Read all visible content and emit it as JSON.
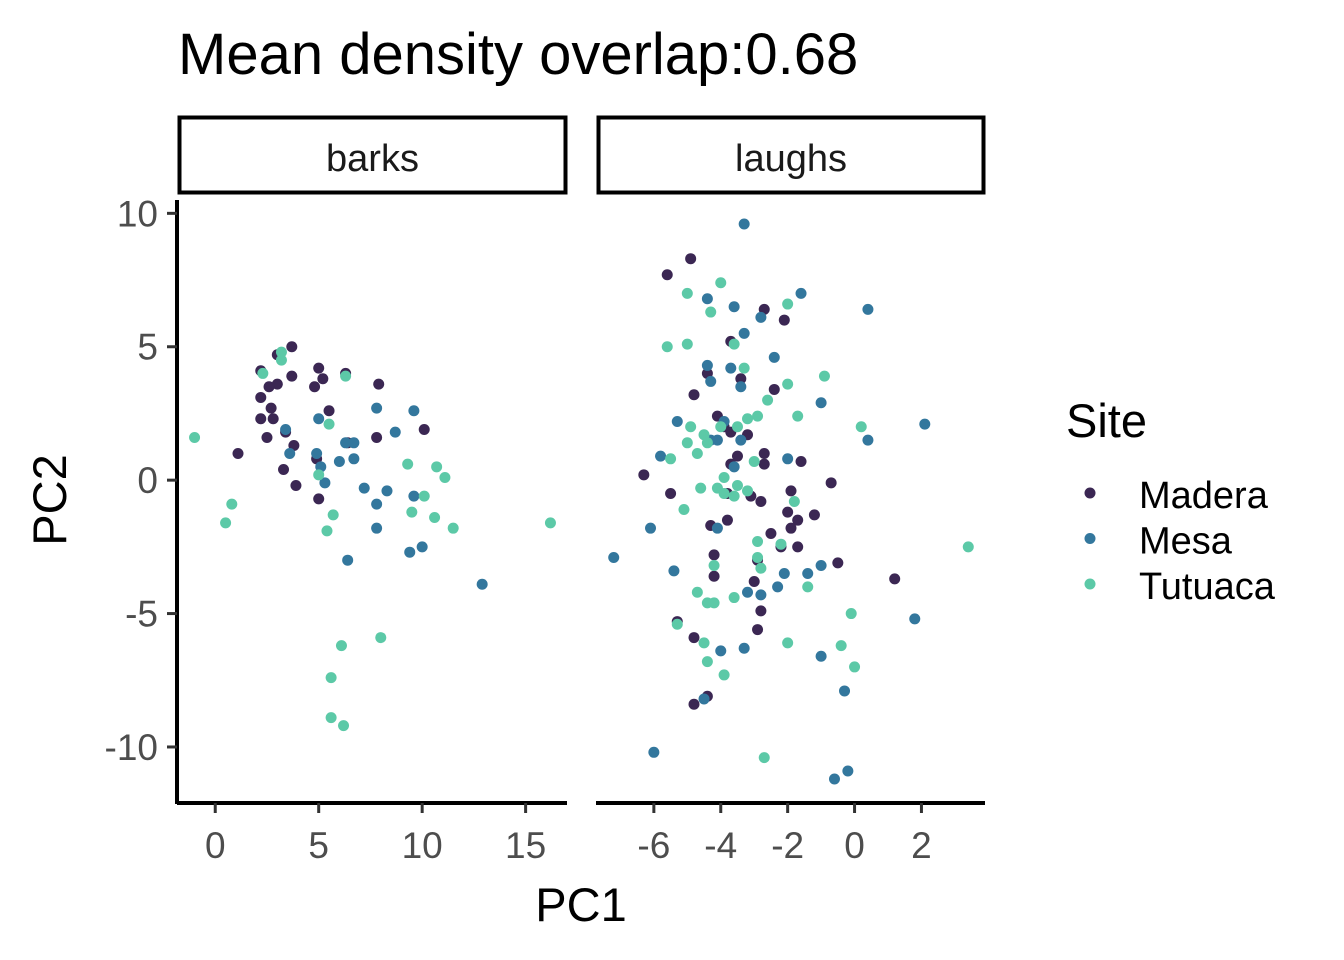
{
  "chart_data": {
    "type": "scatter",
    "title": "Mean density overlap:0.68",
    "xlabel": "PC1",
    "ylabel": "PC2",
    "ylim": [
      -12.1,
      10.5
    ],
    "yticks": [
      10,
      5,
      0,
      -5,
      -10
    ],
    "y_tick_labels": [
      "10",
      "5",
      "0",
      "-5",
      "-10"
    ],
    "legend": {
      "title": "Site",
      "position": "right"
    },
    "series_colors": {
      "Madera": "#3b2753",
      "Mesa": "#33779d",
      "Tutuaca": "#5cc9a7"
    },
    "panels": [
      {
        "label": "barks",
        "xlim": [
          -1.8,
          17
        ],
        "xticks": [
          0,
          5,
          10,
          15
        ],
        "x_tick_labels": [
          "0",
          "5",
          "10",
          "15"
        ],
        "series": [
          {
            "name": "Madera",
            "points": [
              [
                3.7,
                5.0
              ],
              [
                3.0,
                4.7
              ],
              [
                2.2,
                4.1
              ],
              [
                3.0,
                3.6
              ],
              [
                2.6,
                3.5
              ],
              [
                3.7,
                3.9
              ],
              [
                2.2,
                3.1
              ],
              [
                2.7,
                2.7
              ],
              [
                2.8,
                2.3
              ],
              [
                2.2,
                2.3
              ],
              [
                2.5,
                1.6
              ],
              [
                3.4,
                1.8
              ],
              [
                3.8,
                1.3
              ],
              [
                3.3,
                0.4
              ],
              [
                3.9,
                -0.2
              ],
              [
                5.0,
                -0.7
              ],
              [
                1.1,
                1.0
              ],
              [
                5.0,
                4.2
              ],
              [
                5.2,
                3.8
              ],
              [
                4.8,
                3.5
              ],
              [
                5.5,
                2.6
              ],
              [
                6.3,
                4.0
              ],
              [
                6.4,
                1.4
              ],
              [
                7.9,
                3.6
              ],
              [
                7.8,
                1.6
              ],
              [
                10.1,
                1.9
              ],
              [
                4.9,
                0.8
              ]
            ]
          },
          {
            "name": "Mesa",
            "points": [
              [
                3.4,
                1.9
              ],
              [
                3.6,
                1.0
              ],
              [
                4.9,
                1.0
              ],
              [
                5.0,
                2.3
              ],
              [
                5.1,
                0.5
              ],
              [
                5.3,
                -0.1
              ],
              [
                6.0,
                0.7
              ],
              [
                6.3,
                1.4
              ],
              [
                6.7,
                1.4
              ],
              [
                6.7,
                0.8
              ],
              [
                7.2,
                -0.3
              ],
              [
                7.8,
                2.7
              ],
              [
                7.8,
                -0.9
              ],
              [
                7.8,
                -1.8
              ],
              [
                8.3,
                -0.4
              ],
              [
                8.7,
                1.8
              ],
              [
                9.6,
                2.6
              ],
              [
                9.6,
                -0.6
              ],
              [
                9.4,
                -2.7
              ],
              [
                10.0,
                -2.5
              ],
              [
                6.4,
                -3.0
              ],
              [
                12.9,
                -3.9
              ]
            ]
          },
          {
            "name": "Tutuaca",
            "points": [
              [
                -1.0,
                1.6
              ],
              [
                0.8,
                -0.9
              ],
              [
                0.5,
                -1.6
              ],
              [
                2.3,
                4.0
              ],
              [
                3.2,
                4.8
              ],
              [
                3.2,
                4.5
              ],
              [
                5.0,
                0.2
              ],
              [
                5.5,
                2.1
              ],
              [
                5.7,
                -1.3
              ],
              [
                5.4,
                -1.9
              ],
              [
                6.3,
                3.9
              ],
              [
                9.3,
                0.6
              ],
              [
                9.5,
                -1.2
              ],
              [
                10.1,
                -0.6
              ],
              [
                10.7,
                0.5
              ],
              [
                11.1,
                0.1
              ],
              [
                10.6,
                -1.4
              ],
              [
                11.5,
                -1.8
              ],
              [
                16.2,
                -1.6
              ],
              [
                6.1,
                -6.2
              ],
              [
                8.0,
                -5.9
              ],
              [
                5.6,
                -7.4
              ],
              [
                5.6,
                -8.9
              ],
              [
                6.2,
                -9.2
              ]
            ]
          }
        ]
      },
      {
        "label": "laughs",
        "xlim": [
          -7.7,
          3.9
        ],
        "xticks": [
          -6,
          -4,
          -2,
          0,
          2
        ],
        "x_tick_labels": [
          "-6",
          "-4",
          "-2",
          "0",
          "2"
        ],
        "series": [
          {
            "name": "Madera",
            "points": [
              [
                -5.6,
                7.7
              ],
              [
                -4.9,
                8.3
              ],
              [
                -3.7,
                5.2
              ],
              [
                -2.7,
                6.4
              ],
              [
                -2.1,
                6.0
              ],
              [
                -4.4,
                4.0
              ],
              [
                -3.4,
                3.8
              ],
              [
                -4.8,
                3.2
              ],
              [
                -4.1,
                2.4
              ],
              [
                -3.9,
                2.0
              ],
              [
                -3.7,
                1.8
              ],
              [
                -3.2,
                1.7
              ],
              [
                -2.7,
                1.0
              ],
              [
                -2.4,
                3.4
              ],
              [
                -3.5,
                0.9
              ],
              [
                -3.7,
                0.6
              ],
              [
                -2.7,
                0.6
              ],
              [
                -1.6,
                0.7
              ],
              [
                -0.7,
                -0.1
              ],
              [
                -6.3,
                0.2
              ],
              [
                -5.5,
                -0.5
              ],
              [
                -3.8,
                -0.5
              ],
              [
                -3.1,
                -0.6
              ],
              [
                -2.8,
                -0.8
              ],
              [
                -1.9,
                -0.4
              ],
              [
                -2.0,
                -1.2
              ],
              [
                -1.9,
                -1.8
              ],
              [
                -1.7,
                -1.5
              ],
              [
                -1.2,
                -1.3
              ],
              [
                -2.5,
                -2.0
              ],
              [
                -2.2,
                -2.5
              ],
              [
                -1.7,
                -2.5
              ],
              [
                -0.5,
                -3.1
              ],
              [
                -2.9,
                -3.0
              ],
              [
                -3.0,
                -3.8
              ],
              [
                -4.2,
                -2.8
              ],
              [
                -4.2,
                -3.6
              ],
              [
                -2.8,
                -4.9
              ],
              [
                -2.9,
                -5.6
              ],
              [
                -5.3,
                -5.3
              ],
              [
                -4.8,
                -5.9
              ],
              [
                -4.4,
                -8.1
              ],
              [
                -4.8,
                -8.4
              ],
              [
                1.2,
                -3.7
              ],
              [
                -4.3,
                -1.7
              ],
              [
                -3.8,
                -1.5
              ]
            ]
          },
          {
            "name": "Mesa",
            "points": [
              [
                -3.3,
                9.6
              ],
              [
                -1.6,
                7.0
              ],
              [
                -4.4,
                6.8
              ],
              [
                -3.6,
                6.5
              ],
              [
                -2.8,
                6.1
              ],
              [
                -3.3,
                5.5
              ],
              [
                0.4,
                6.4
              ],
              [
                -4.4,
                4.3
              ],
              [
                -3.7,
                4.2
              ],
              [
                -2.4,
                4.6
              ],
              [
                -4.3,
                3.7
              ],
              [
                -3.4,
                3.5
              ],
              [
                -3.9,
                2.2
              ],
              [
                -5.3,
                2.2
              ],
              [
                -1.0,
                2.9
              ],
              [
                -3.4,
                1.5
              ],
              [
                -4.3,
                1.5
              ],
              [
                -5.8,
                0.9
              ],
              [
                -4.1,
                1.5
              ],
              [
                -3.6,
                0.5
              ],
              [
                -2.0,
                0.8
              ],
              [
                0.4,
                1.5
              ],
              [
                2.1,
                2.1
              ],
              [
                -6.1,
                -1.8
              ],
              [
                -4.1,
                -1.8
              ],
              [
                -7.2,
                -2.9
              ],
              [
                -5.4,
                -3.4
              ],
              [
                -3.2,
                -4.2
              ],
              [
                -2.3,
                -4.0
              ],
              [
                -2.1,
                -3.5
              ],
              [
                -1.4,
                -3.5
              ],
              [
                -1.0,
                -3.2
              ],
              [
                -4.0,
                -6.4
              ],
              [
                -3.3,
                -6.3
              ],
              [
                -4.5,
                -8.2
              ],
              [
                -1.0,
                -6.6
              ],
              [
                -0.3,
                -7.9
              ],
              [
                -6.0,
                -10.2
              ],
              [
                -0.6,
                -11.2
              ],
              [
                -0.2,
                -10.9
              ],
              [
                1.8,
                -5.2
              ],
              [
                -2.8,
                -4.3
              ]
            ]
          },
          {
            "name": "Tutuaca",
            "points": [
              [
                -5.0,
                7.0
              ],
              [
                -4.0,
                7.4
              ],
              [
                -4.3,
                6.3
              ],
              [
                -2.0,
                6.6
              ],
              [
                -5.6,
                5.0
              ],
              [
                -5.0,
                5.1
              ],
              [
                -3.6,
                5.1
              ],
              [
                -3.3,
                4.2
              ],
              [
                -2.6,
                3.0
              ],
              [
                -2.0,
                3.6
              ],
              [
                -0.9,
                3.9
              ],
              [
                -2.9,
                2.4
              ],
              [
                -1.7,
                2.4
              ],
              [
                -3.5,
                2.0
              ],
              [
                -3.2,
                2.3
              ],
              [
                -4.9,
                2.0
              ],
              [
                -4.5,
                1.7
              ],
              [
                -4.0,
                2.0
              ],
              [
                -5.0,
                1.4
              ],
              [
                -4.4,
                1.4
              ],
              [
                -3.0,
                0.7
              ],
              [
                -5.5,
                0.8
              ],
              [
                -4.7,
                1.0
              ],
              [
                0.2,
                2.0
              ],
              [
                -4.6,
                -0.3
              ],
              [
                -4.1,
                -0.3
              ],
              [
                -3.9,
                -0.5
              ],
              [
                -3.6,
                -0.6
              ],
              [
                -3.2,
                -0.4
              ],
              [
                -3.5,
                -0.2
              ],
              [
                -3.9,
                0.1
              ],
              [
                -5.1,
                -1.1
              ],
              [
                -1.8,
                -0.8
              ],
              [
                -2.9,
                -2.3
              ],
              [
                -2.2,
                -2.4
              ],
              [
                -2.9,
                -2.9
              ],
              [
                -4.2,
                -3.2
              ],
              [
                -2.8,
                -3.3
              ],
              [
                -1.4,
                -4.0
              ],
              [
                -4.7,
                -4.2
              ],
              [
                -4.4,
                -4.6
              ],
              [
                -4.2,
                -4.6
              ],
              [
                -3.6,
                -4.4
              ],
              [
                -5.3,
                -5.4
              ],
              [
                -0.1,
                -5.0
              ],
              [
                -4.5,
                -6.1
              ],
              [
                -2.0,
                -6.1
              ],
              [
                -0.4,
                -6.2
              ],
              [
                -0.0,
                -7.0
              ],
              [
                -4.4,
                -6.8
              ],
              [
                -3.9,
                -7.3
              ],
              [
                -2.7,
                -10.4
              ],
              [
                3.4,
                -2.5
              ]
            ]
          }
        ]
      }
    ]
  }
}
